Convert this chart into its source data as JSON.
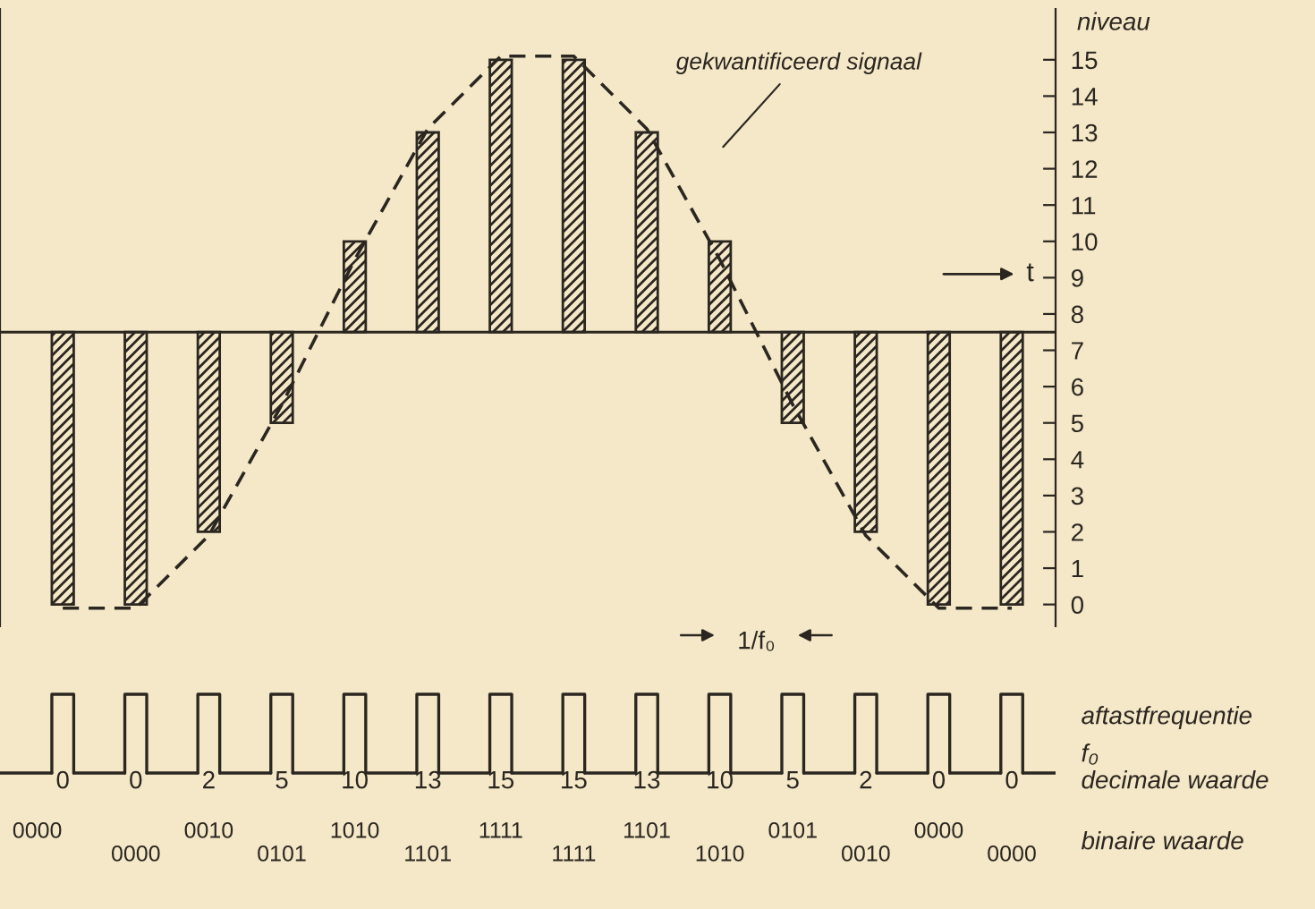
{
  "chart_data": {
    "type": "bar",
    "ylabel": "niveau",
    "tick_labels": "y",
    "categories": [
      "0",
      "0",
      "2",
      "5",
      "10",
      "13",
      "15",
      "15",
      "13",
      "10",
      "5",
      "2",
      "0",
      "0"
    ],
    "series": [
      {
        "color": "#2b2620",
        "base": [
          7.5,
          7.5,
          7.5,
          7.5,
          7.5,
          7.5,
          7.5,
          7.5,
          7.5,
          7.5,
          7.5,
          7.5,
          7.5,
          7.5
        ],
        "values": [
          -7.5,
          -7.5,
          -5.5,
          -2.5,
          2.5,
          5.5,
          7.5,
          7.5,
          5.5,
          2.5,
          -2.5,
          -5.5,
          -7.5,
          -7.5
        ]
      },
      {
        "type": "line",
        "color": "#2b2620",
        "line_style": "dashed",
        "values": [
          -0.1,
          -0.1,
          1.9,
          5.5,
          9.5,
          13.1,
          15.1,
          15.1,
          13.1,
          9.5,
          5.5,
          1.9,
          -0.1,
          -0.1
        ]
      }
    ],
    "ylim": [
      -0.6,
      16.4
    ],
    "yticks": [
      0,
      1,
      2,
      3,
      4,
      5,
      6,
      7,
      8,
      9,
      10,
      11,
      12,
      13,
      14,
      15
    ],
    "ref_lines": [
      {
        "axis": "y",
        "value": 7.5,
        "color": "#2b2620"
      }
    ],
    "annotations": [
      "gekwantificeerd signaal",
      "t",
      "1/f₀",
      "aftastfrequentie",
      "f₀",
      "decimale waarde",
      "binaire waarde",
      "0000",
      "0000",
      "0010",
      "0101",
      "1010",
      "1101",
      "1111",
      "1111",
      "1101",
      "1010",
      "0101",
      "0010",
      "0000",
      "0000"
    ]
  }
}
